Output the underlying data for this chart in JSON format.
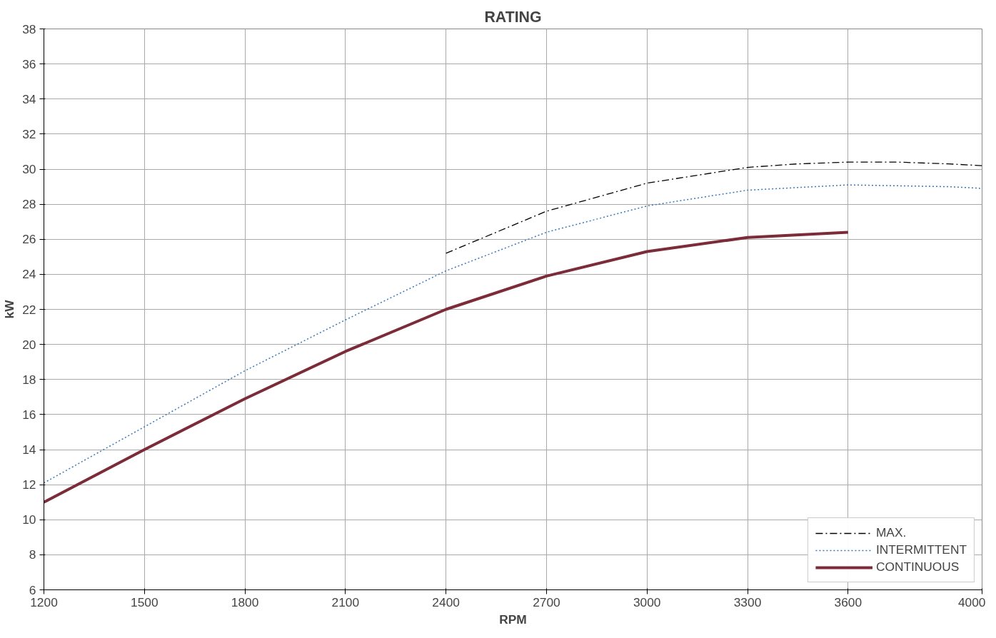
{
  "chart_data": {
    "type": "line",
    "title": "RATING",
    "xlabel": "RPM",
    "ylabel": "kW",
    "xlim": [
      1200,
      4000
    ],
    "xticks": [
      1200,
      1500,
      1800,
      2100,
      2400,
      2700,
      3000,
      3300,
      3600,
      4000
    ],
    "ylim": [
      6,
      38
    ],
    "yticks": [
      6,
      8,
      10,
      12,
      14,
      16,
      18,
      20,
      22,
      24,
      26,
      28,
      30,
      32,
      34,
      36,
      38
    ],
    "grid": true,
    "legend": "bottom right",
    "marker": "none",
    "series": [
      {
        "name": "MAX.",
        "color": "#000000",
        "line_style": "dashed",
        "x": [
          2400,
          2700,
          3000,
          3300,
          3450,
          3600,
          3750,
          3900,
          4000
        ],
        "values": [
          25.2,
          27.6,
          29.2,
          30.1,
          30.3,
          30.4,
          30.4,
          30.3,
          30.2
        ]
      },
      {
        "name": "INTERMITTENT",
        "color": "#3a78b8",
        "line_style": "dotted",
        "x": [
          1200,
          1500,
          1800,
          2100,
          2400,
          2700,
          3000,
          3300,
          3600,
          3900,
          4000
        ],
        "values": [
          12.1,
          15.3,
          18.5,
          21.4,
          24.2,
          26.4,
          27.9,
          28.8,
          29.1,
          29.0,
          28.9
        ]
      },
      {
        "name": "CONTINUOUS",
        "color": "#7b2c38",
        "line_style": "solid",
        "x": [
          1200,
          1500,
          1800,
          2100,
          2400,
          2700,
          3000,
          3300,
          3600
        ],
        "values": [
          11.0,
          14.0,
          16.9,
          19.6,
          22.0,
          23.9,
          25.3,
          26.1,
          26.4
        ]
      }
    ]
  }
}
